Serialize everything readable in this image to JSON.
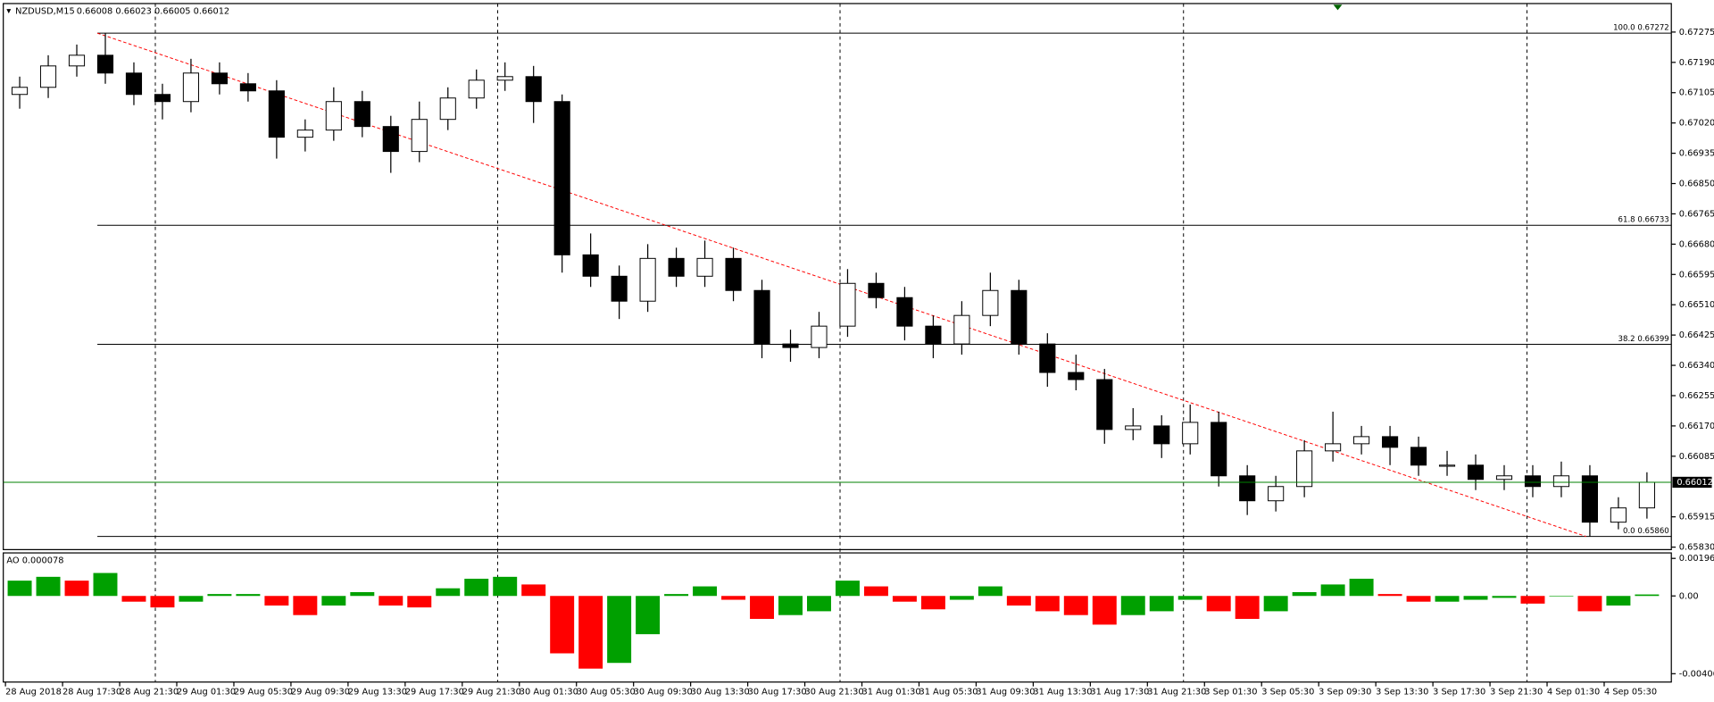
{
  "chart_data": {
    "type": "candlestick",
    "header": {
      "symbol": "NZDUSD,M15",
      "quote": "0.66008 0.66023 0.66005 0.66012"
    },
    "open": [
      0.671,
      0.6712,
      0.6718,
      0.6721,
      0.6716,
      0.671,
      0.6708,
      0.6716,
      0.6713,
      0.6711,
      0.6698,
      0.67,
      0.6708,
      0.6701,
      0.6694,
      0.6703,
      0.6709,
      0.6714,
      0.6715,
      0.6708,
      0.6665,
      0.6659,
      0.6652,
      0.6664,
      0.6659,
      0.6664,
      0.6655,
      0.664,
      0.6639,
      0.6645,
      0.6657,
      0.6653,
      0.6645,
      0.664,
      0.6648,
      0.6655,
      0.664,
      0.6632,
      0.663,
      0.6616,
      0.6617,
      0.6612,
      0.6618,
      0.6603,
      0.6596,
      0.66,
      0.661,
      0.6612,
      0.6614,
      0.6611,
      0.6606,
      0.6606,
      0.6602,
      0.6603,
      0.66,
      0.6603,
      0.659,
      0.6594
    ],
    "high": [
      0.6715,
      0.6721,
      0.6724,
      0.67272,
      0.6719,
      0.6713,
      0.672,
      0.6719,
      0.6716,
      0.6714,
      0.6703,
      0.6712,
      0.6711,
      0.6704,
      0.6708,
      0.6712,
      0.6717,
      0.6719,
      0.6718,
      0.671,
      0.6671,
      0.6662,
      0.6668,
      0.6667,
      0.6669,
      0.6667,
      0.6658,
      0.6644,
      0.6649,
      0.6661,
      0.666,
      0.6656,
      0.6648,
      0.6652,
      0.666,
      0.6658,
      0.6643,
      0.6637,
      0.6633,
      0.6622,
      0.662,
      0.6623,
      0.6621,
      0.6606,
      0.6603,
      0.6613,
      0.6621,
      0.6617,
      0.6617,
      0.6614,
      0.661,
      0.6609,
      0.6606,
      0.6606,
      0.6607,
      0.6606,
      0.6597,
      0.6604
    ],
    "low": [
      0.6706,
      0.6709,
      0.6715,
      0.6713,
      0.6707,
      0.6703,
      0.6705,
      0.671,
      0.6708,
      0.6692,
      0.6694,
      0.6697,
      0.6698,
      0.6688,
      0.6691,
      0.67,
      0.6706,
      0.6711,
      0.6702,
      0.666,
      0.6656,
      0.6647,
      0.6649,
      0.6656,
      0.6656,
      0.6652,
      0.6636,
      0.6635,
      0.6636,
      0.6642,
      0.665,
      0.6641,
      0.6636,
      0.6637,
      0.6645,
      0.6637,
      0.6628,
      0.6627,
      0.6612,
      0.6613,
      0.6608,
      0.6609,
      0.66,
      0.6592,
      0.6593,
      0.6597,
      0.6607,
      0.6609,
      0.6606,
      0.6603,
      0.6603,
      0.6599,
      0.6599,
      0.6597,
      0.6597,
      0.6586,
      0.6588,
      0.6591
    ],
    "close": [
      0.6712,
      0.6718,
      0.6721,
      0.6716,
      0.671,
      0.6708,
      0.6716,
      0.6713,
      0.6711,
      0.6698,
      0.67,
      0.6708,
      0.6701,
      0.6694,
      0.6703,
      0.6709,
      0.6714,
      0.6715,
      0.6708,
      0.6665,
      0.6659,
      0.6652,
      0.6664,
      0.6659,
      0.6664,
      0.6655,
      0.664,
      0.6639,
      0.6645,
      0.6657,
      0.6653,
      0.6645,
      0.664,
      0.6648,
      0.6655,
      0.664,
      0.6632,
      0.663,
      0.6616,
      0.6617,
      0.6612,
      0.6618,
      0.6603,
      0.6596,
      0.66,
      0.661,
      0.6612,
      0.6614,
      0.6611,
      0.6606,
      0.6606,
      0.6602,
      0.6603,
      0.66,
      0.6603,
      0.659,
      0.6594,
      0.66012
    ],
    "ylim": [
      0.65823,
      0.67355
    ],
    "yticks": [
      0.67275,
      {
        "value": 0.6719,
        "label": "0.67190"
      },
      0.67105,
      {
        "value": 0.6702,
        "label": "0.67020"
      },
      0.66935,
      {
        "value": 0.6685,
        "label": "0.66850"
      },
      0.66765,
      {
        "value": 0.6668,
        "label": "0.66680"
      },
      0.66595,
      {
        "value": 0.6651,
        "label": "0.66510"
      },
      0.66425,
      {
        "value": 0.6634,
        "label": "0.66340"
      },
      0.66255,
      {
        "value": 0.6617,
        "label": "0.66170"
      },
      0.66085,
      0.65915,
      {
        "value": 0.6583,
        "label": "0.65830"
      }
    ],
    "current_price": {
      "value": 0.66012,
      "label": "0.66012"
    },
    "fib_levels": [
      {
        "value": 0.67272,
        "label": "100.0 0.67272"
      },
      {
        "value": 0.66733,
        "label": "61.8 0.66733"
      },
      {
        "value": 0.66399,
        "label": "38.2 0.66399"
      },
      {
        "value": 0.6586,
        "label": "0.0 0.65860"
      }
    ],
    "trendline": [
      0.67272,
      0.6586
    ],
    "time_labels": [
      "28 Aug 2018",
      "28 Aug 17:30",
      "28 Aug 21:30",
      "29 Aug 01:30",
      "29 Aug 05:30",
      "29 Aug 09:30",
      "29 Aug 13:30",
      "29 Aug 17:30",
      "29 Aug 21:30",
      "30 Aug 01:30",
      "30 Aug 05:30",
      "30 Aug 09:30",
      "30 Aug 13:30",
      "30 Aug 17:30",
      "30 Aug 21:30",
      "31 Aug 01:30",
      "31 Aug 05:30",
      "31 Aug 09:30",
      "31 Aug 13:30",
      "31 Aug 17:30",
      "31 Aug 21:30",
      "3 Sep 01:30",
      "3 Sep 05:30",
      "3 Sep 09:30",
      "3 Sep 13:30",
      "3 Sep 17:30",
      "3 Sep 21:30",
      "4 Sep 01:30",
      "4 Sep 05:30"
    ],
    "ao": {
      "label": "AO 0.000078",
      "values": [
        0.0008,
        0.001,
        0.0008,
        0.0012,
        -0.0003,
        -0.0006,
        -0.0003,
        0.0001,
        0.0001,
        -0.0005,
        -0.001,
        -0.0005,
        0.0002,
        -0.0005,
        -0.0006,
        0.0004,
        0.0009,
        0.001,
        0.0006,
        -0.003,
        -0.0038,
        -0.0035,
        -0.002,
        0.0001,
        0.0005,
        -0.0002,
        -0.0012,
        -0.001,
        -0.0008,
        0.0008,
        0.0005,
        -0.0003,
        -0.0007,
        -0.0002,
        0.0005,
        -0.0005,
        -0.0008,
        -0.001,
        -0.0015,
        -0.001,
        -0.0008,
        -0.0002,
        -0.0008,
        -0.0012,
        -0.0008,
        0.0002,
        0.0006,
        0.0009,
        0.0001,
        -0.0003,
        -0.0003,
        -0.0002,
        -0.0001,
        -0.0004,
        0.0,
        -0.0008,
        -0.0005,
        7.8e-05
      ],
      "up_color": "#00a000",
      "down_color": "#ff0000",
      "ylim": [
        -0.0045,
        0.00225
      ],
      "yticks": [
        0.001963,
        {
          "value": 0,
          "label": "0.00"
        },
        -0.004065
      ]
    }
  }
}
